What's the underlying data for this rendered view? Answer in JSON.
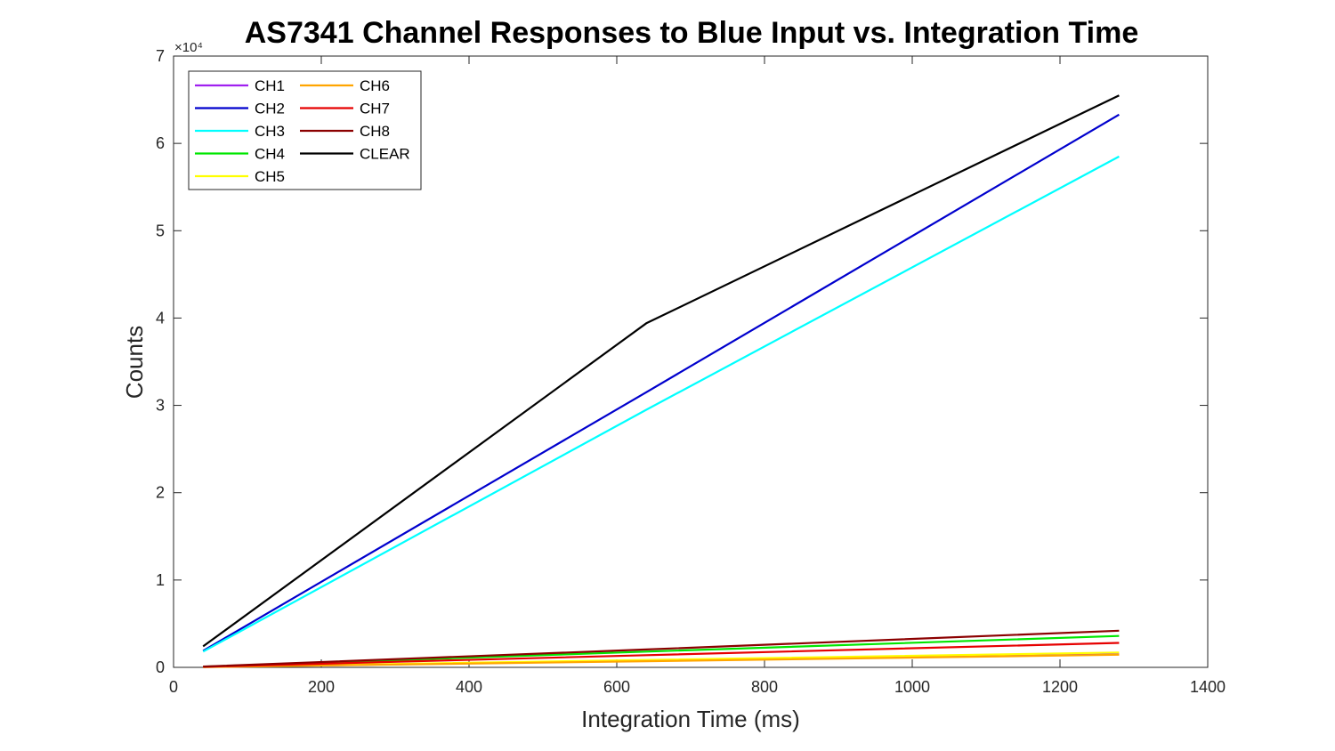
{
  "chart_data": {
    "type": "line",
    "title": "AS7341 Channel Responses to Blue Input vs. Integration Time",
    "xlabel": "Integration Time (ms)",
    "ylabel": "Counts",
    "xlim": [
      0,
      1400
    ],
    "ylim": [
      0,
      70000
    ],
    "x_ticks": [
      "0",
      "200",
      "400",
      "600",
      "800",
      "1000",
      "1200",
      "1400"
    ],
    "y_ticks": [
      "0",
      "1",
      "2",
      "3",
      "4",
      "5",
      "6",
      "7"
    ],
    "y_exponent_label": "×10⁴",
    "grid": false,
    "legend_position": "top-left",
    "x": [
      40,
      640,
      1280
    ],
    "series": [
      {
        "name": "CH1",
        "color": "#a020f0",
        "values": [
          30,
          750,
          1500
        ]
      },
      {
        "name": "CH2",
        "color": "#0000cd",
        "values": [
          1900,
          31500,
          63300
        ]
      },
      {
        "name": "CH3",
        "color": "#00ffff",
        "values": [
          1800,
          29500,
          58500
        ]
      },
      {
        "name": "CH4",
        "color": "#00e600",
        "values": [
          80,
          1800,
          3600
        ]
      },
      {
        "name": "CH5",
        "color": "#ffff00",
        "values": [
          40,
          850,
          1700
        ]
      },
      {
        "name": "CH6",
        "color": "#ffa500",
        "values": [
          35,
          700,
          1450
        ]
      },
      {
        "name": "CH7",
        "color": "#e60000",
        "values": [
          60,
          1400,
          2800
        ]
      },
      {
        "name": "CH8",
        "color": "#8b0000",
        "values": [
          90,
          2050,
          4200
        ]
      },
      {
        "name": "CLEAR",
        "color": "#000000",
        "values": [
          2400,
          39400,
          65500
        ]
      }
    ]
  }
}
